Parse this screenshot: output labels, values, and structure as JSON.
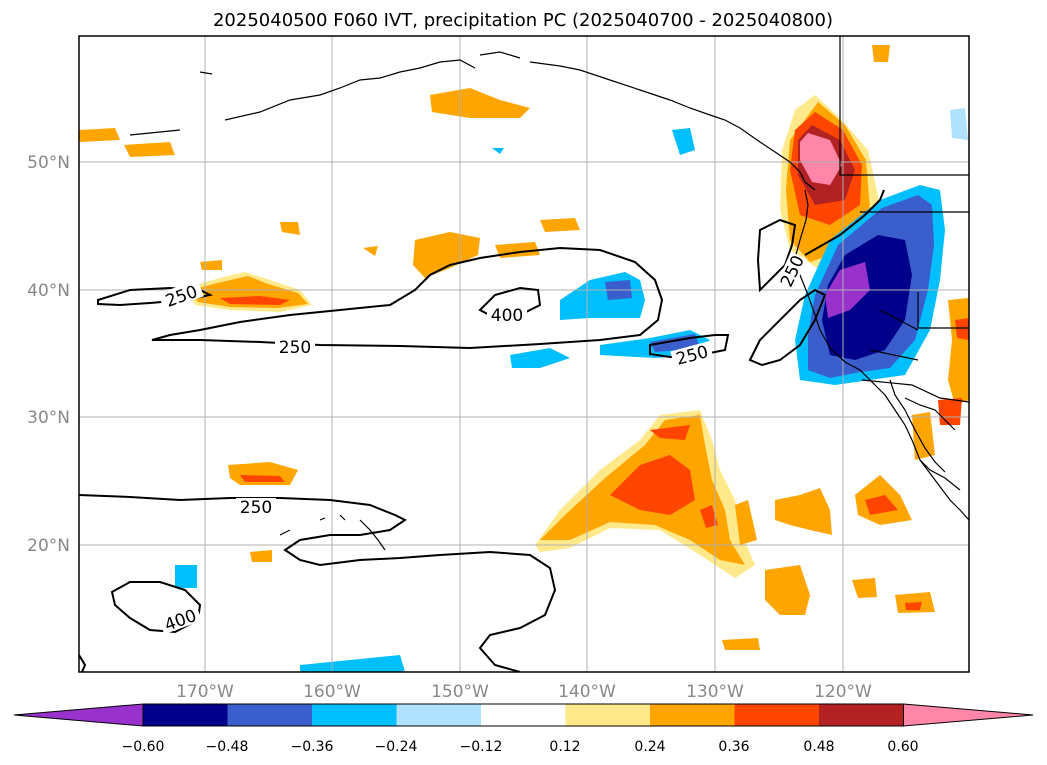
{
  "title": "2025040500 F060 IVT, precipitation PC (2025040700 - 2025040800)",
  "map": {
    "lon_labels": [
      "170°W",
      "160°W",
      "150°W",
      "140°W",
      "130°W",
      "120°W"
    ],
    "lat_labels": [
      "50°N",
      "40°N",
      "30°N",
      "20°N"
    ],
    "ivt_contour_levels": [
      "250",
      "400"
    ],
    "contour_labels": [
      {
        "text": "250",
        "region": "central-pacific-west"
      },
      {
        "text": "250",
        "region": "central-pacific-south"
      },
      {
        "text": "400",
        "region": "central-pacific-core"
      },
      {
        "text": "250",
        "region": "east-pacific"
      },
      {
        "text": "250",
        "region": "california-coast"
      },
      {
        "text": "250",
        "region": "hawaii-north"
      },
      {
        "text": "400",
        "region": "hawaii-southwest"
      }
    ]
  },
  "colorbar": {
    "ticks": [
      "−0.60",
      "−0.48",
      "−0.36",
      "−0.24",
      "−0.12",
      "0.12",
      "0.24",
      "0.36",
      "0.48",
      "0.60"
    ],
    "colors": [
      "#9932cc",
      "#00008b",
      "#3a5fcd",
      "#00bfff",
      "#b0e2ff",
      "#ffffff",
      "#ffe98a",
      "#ffa500",
      "#ff4500",
      "#b22222",
      "#ff86a8"
    ]
  }
}
